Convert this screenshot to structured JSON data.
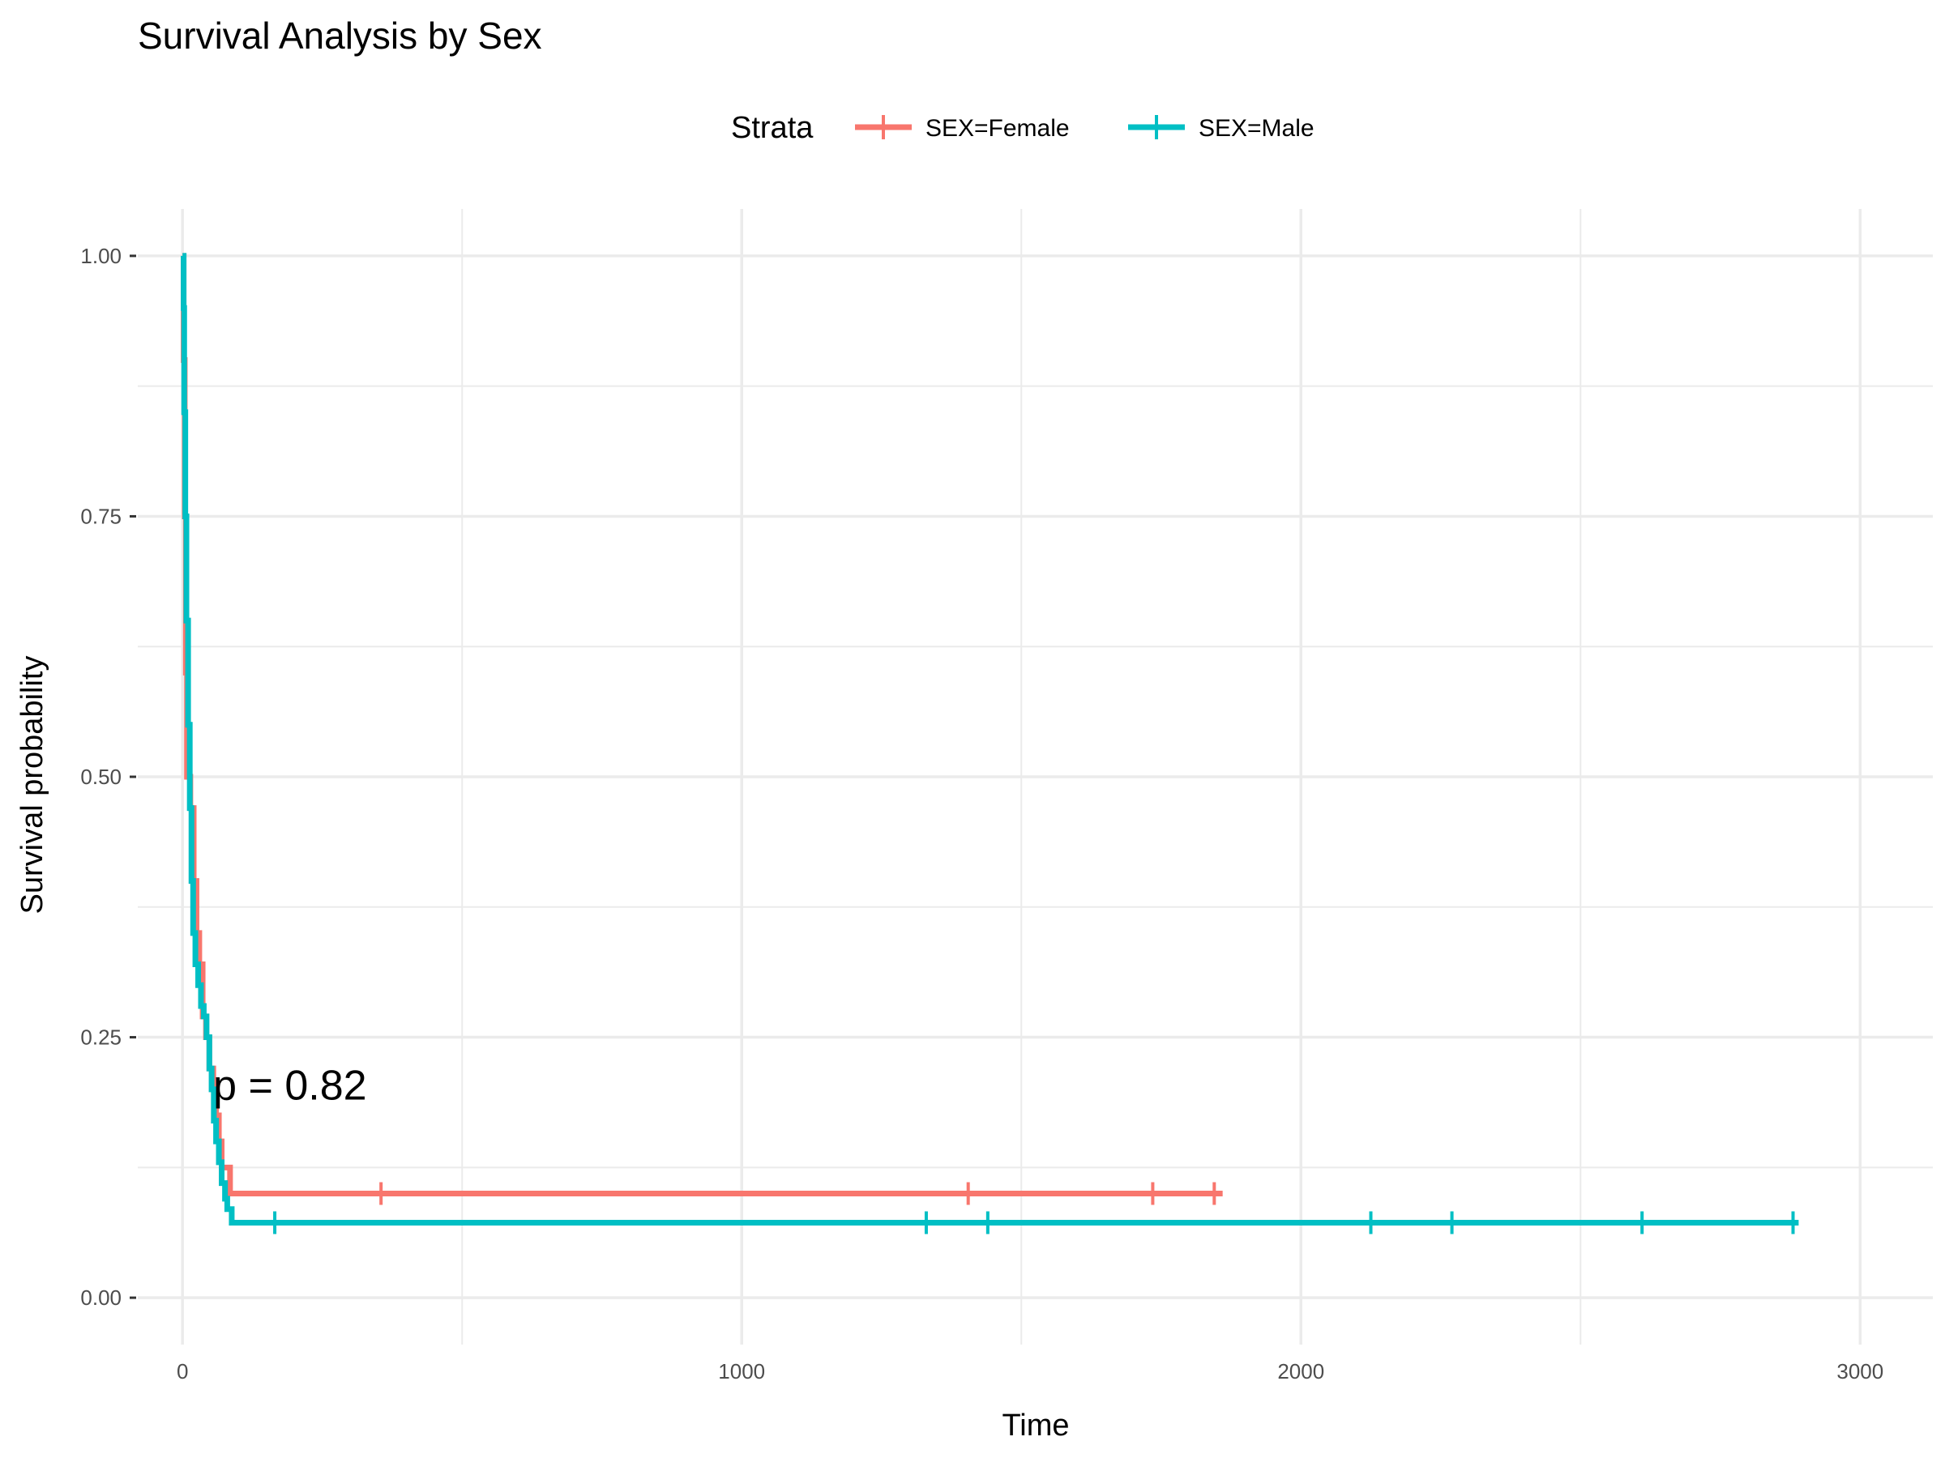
{
  "chart_data": {
    "type": "line",
    "title": "Survival Analysis by Sex",
    "xlabel": "Time",
    "ylabel": "Survival probability",
    "xlim": [
      -80,
      3130
    ],
    "ylim": [
      -0.045,
      1.045
    ],
    "xticks": [
      0,
      1000,
      2000,
      3000
    ],
    "xtick_labels": [
      "0",
      "1000",
      "2000",
      "3000"
    ],
    "yticks": [
      0,
      0.25,
      0.5,
      0.75,
      1
    ],
    "ytick_labels": [
      "0.00",
      "0.25",
      "0.50",
      "0.75",
      "1.00"
    ],
    "grid": true,
    "legend": {
      "title": "Strata",
      "position": "top"
    },
    "annotation": "p = 0.82",
    "annotation_position": {
      "x": 55,
      "y": 0.19
    },
    "series": [
      {
        "name": "SEX=Female",
        "color": "#F8766D",
        "steps": [
          [
            0,
            1.0
          ],
          [
            2,
            0.9
          ],
          [
            4,
            0.75
          ],
          [
            6,
            0.6
          ],
          [
            8,
            0.5
          ],
          [
            14,
            0.47
          ],
          [
            20,
            0.4
          ],
          [
            25,
            0.35
          ],
          [
            30,
            0.32
          ],
          [
            36,
            0.27
          ],
          [
            42,
            0.25
          ],
          [
            48,
            0.22
          ],
          [
            55,
            0.2
          ],
          [
            60,
            0.175
          ],
          [
            65,
            0.15
          ],
          [
            70,
            0.125
          ],
          [
            85,
            0.1
          ]
        ],
        "end_x": 1860,
        "censor_times": [
          355,
          1405,
          1735,
          1845
        ]
      },
      {
        "name": "SEX=Male",
        "color": "#00BFC4",
        "steps": [
          [
            0,
            1.0
          ],
          [
            2,
            0.95
          ],
          [
            3,
            0.85
          ],
          [
            5,
            0.75
          ],
          [
            7,
            0.65
          ],
          [
            10,
            0.55
          ],
          [
            13,
            0.47
          ],
          [
            16,
            0.4
          ],
          [
            19,
            0.35
          ],
          [
            23,
            0.32
          ],
          [
            28,
            0.3
          ],
          [
            33,
            0.28
          ],
          [
            38,
            0.27
          ],
          [
            43,
            0.25
          ],
          [
            48,
            0.22
          ],
          [
            52,
            0.2
          ],
          [
            56,
            0.17
          ],
          [
            60,
            0.15
          ],
          [
            65,
            0.13
          ],
          [
            70,
            0.11
          ],
          [
            76,
            0.095
          ],
          [
            80,
            0.085
          ],
          [
            88,
            0.072
          ]
        ],
        "end_x": 2890,
        "censor_times": [
          165,
          1330,
          1440,
          2125,
          2270,
          2610,
          2880
        ]
      }
    ]
  }
}
